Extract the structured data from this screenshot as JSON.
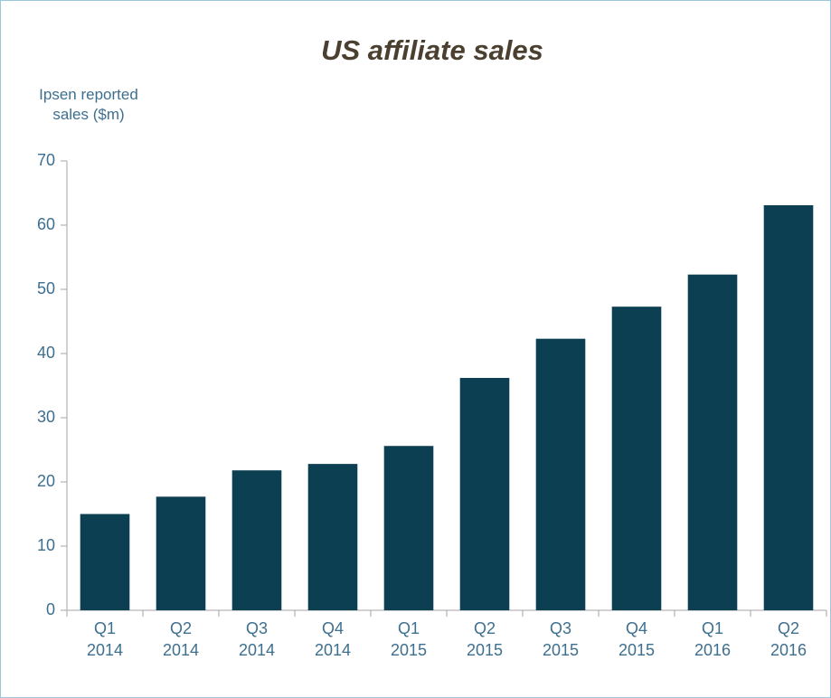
{
  "chart_data": {
    "type": "bar",
    "title": "US affiliate sales",
    "y_label": "Ipsen reported sales ($m)",
    "categories": [
      "Q1 2014",
      "Q2 2014",
      "Q3 2014",
      "Q4 2014",
      "Q1 2015",
      "Q2 2015",
      "Q3 2015",
      "Q4 2015",
      "Q1 2016",
      "Q2 2016"
    ],
    "values": [
      15,
      17.7,
      21.8,
      22.8,
      25.6,
      36.2,
      42.3,
      47.3,
      52.3,
      63.1
    ],
    "color": "#0d3f52",
    "ylim": [
      0,
      70
    ],
    "yticks": [
      0,
      10,
      20,
      30,
      40,
      50,
      60,
      70
    ],
    "grid": false
  }
}
